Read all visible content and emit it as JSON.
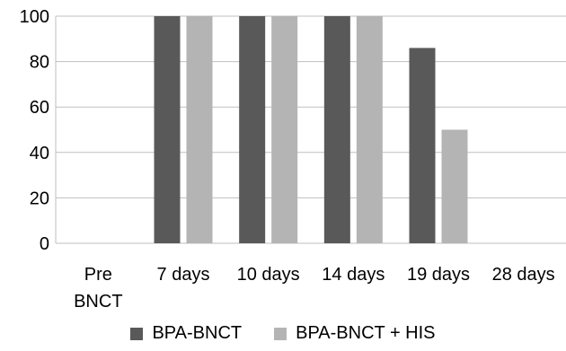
{
  "chart_data": {
    "type": "bar",
    "title": "",
    "xlabel": "",
    "ylabel": "",
    "categories": [
      "Pre BNCT",
      "7 days",
      "10 days",
      "14 days",
      "19 days",
      "28 days"
    ],
    "category_lines": [
      [
        "Pre",
        "BNCT"
      ],
      [
        "7 days"
      ],
      [
        "10 days"
      ],
      [
        "14 days"
      ],
      [
        "19 days"
      ],
      [
        "28 days"
      ]
    ],
    "series": [
      {
        "name": "BPA-BNCT",
        "color": "#595959",
        "values": [
          0,
          100,
          100,
          100,
          86,
          0
        ]
      },
      {
        "name": "BPA-BNCT + HIS",
        "color": "#b4b4b4",
        "values": [
          0,
          100,
          100,
          100,
          50,
          0
        ]
      }
    ],
    "ylim": [
      0,
      100
    ],
    "yticks": [
      0,
      20,
      40,
      60,
      80,
      100
    ],
    "grid": true,
    "legend_position": "bottom"
  }
}
